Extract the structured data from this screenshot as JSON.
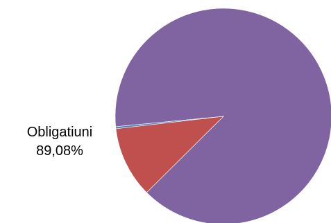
{
  "chart_data": {
    "type": "pie",
    "title": "",
    "slices": [
      {
        "label": "Obligatiuni",
        "value": 89.08,
        "value_label": "89,08%",
        "color": "#8064A2"
      },
      {
        "label": "",
        "value": 10.62,
        "value_label": "",
        "color": "#C0504D"
      },
      {
        "label": "",
        "value": 0.3,
        "value_label": "",
        "color": "#4F81BD"
      }
    ],
    "start": "clockwise from the large slice boundary",
    "legend": "none"
  }
}
